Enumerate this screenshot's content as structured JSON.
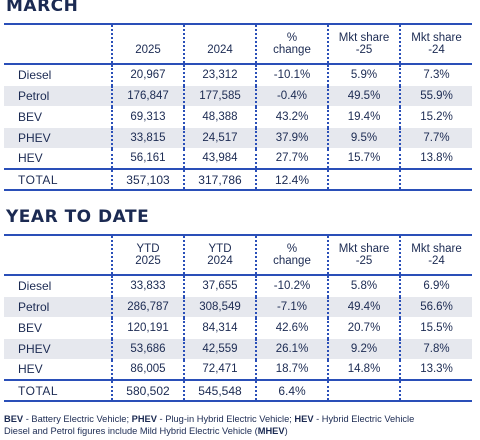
{
  "march": {
    "title": "MARCH",
    "headers": [
      "",
      "2025",
      "2024",
      "% change",
      "Mkt share -25",
      "Mkt share -24"
    ],
    "rows": [
      [
        "Diesel",
        "20,967",
        "23,312",
        "-10.1%",
        "5.9%",
        "7.3%"
      ],
      [
        "Petrol",
        "176,847",
        "177,585",
        "-0.4%",
        "49.5%",
        "55.9%"
      ],
      [
        "BEV",
        "69,313",
        "48,388",
        "43.2%",
        "19.4%",
        "15.2%"
      ],
      [
        "PHEV",
        "33,815",
        "24,517",
        "37.9%",
        "9.5%",
        "7.7%"
      ],
      [
        "HEV",
        "56,161",
        "43,984",
        "27.7%",
        "15.7%",
        "13.8%"
      ]
    ],
    "total": [
      "TOTAL",
      "357,103",
      "317,786",
      "12.4%",
      "",
      ""
    ]
  },
  "ytd": {
    "title": "YEAR TO DATE",
    "headers": [
      "",
      "YTD 2025",
      "YTD 2024",
      "% change",
      "Mkt share -25",
      "Mkt share -24"
    ],
    "rows": [
      [
        "Diesel",
        "33,833",
        "37,655",
        "-10.2%",
        "5.8%",
        "6.9%"
      ],
      [
        "Petrol",
        "286,787",
        "308,549",
        "-7.1%",
        "49.4%",
        "56.6%"
      ],
      [
        "BEV",
        "120,191",
        "84,314",
        "42.6%",
        "20.7%",
        "15.5%"
      ],
      [
        "PHEV",
        "53,686",
        "42,559",
        "26.1%",
        "9.2%",
        "7.8%"
      ],
      [
        "HEV",
        "86,005",
        "72,471",
        "18.7%",
        "14.8%",
        "13.3%"
      ]
    ],
    "total": [
      "TOTAL",
      "580,502",
      "545,548",
      "6.4%",
      "",
      ""
    ]
  },
  "footnote": {
    "bev_abbr": "BEV",
    "bev_text": " - Battery Electric Vehicle; ",
    "phev_abbr": "PHEV",
    "phev_text": " - Plug-in Hybrid Electric Vehicle; ",
    "hev_abbr": "HEV",
    "hev_text": " - Hybrid Electric Vehicle",
    "line2_text": "Diesel and Petrol figures include Mild Hybrid Electric Vehicle (",
    "mhev_abbr": "MHEV",
    "line2_end": ")"
  }
}
